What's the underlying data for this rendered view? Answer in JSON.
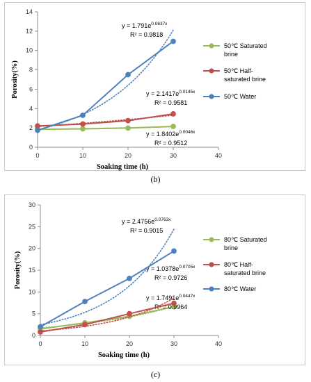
{
  "chart_data": [
    {
      "type": "line",
      "caption": "(b)",
      "xlabel": "Soaking time (h)",
      "ylabel": "Porosity(%)",
      "xlim": [
        0,
        40
      ],
      "ylim": [
        0,
        14
      ],
      "xticks": [
        0,
        10,
        20,
        30,
        40
      ],
      "yticks": [
        0,
        2,
        4,
        6,
        8,
        10,
        12,
        14
      ],
      "x": [
        0,
        10,
        20,
        30
      ],
      "legend_position": "right",
      "series": [
        {
          "name": "50℃ Saturated brine",
          "legend_lines": [
            "50℃ Saturated",
            "brine"
          ],
          "color": "#9BBB59",
          "values": [
            1.85,
            1.9,
            1.98,
            2.15
          ],
          "fit": {
            "a": 1.8402,
            "b": 0.0046
          },
          "eq_base": "y = 1.8402e",
          "eq_exp": "0.0046x",
          "r2": "R² = 0.9512"
        },
        {
          "name": "50℃ Half-saturated brine",
          "legend_lines": [
            "50℃ Half-",
            "saturated brine"
          ],
          "color": "#C0504D",
          "values": [
            2.2,
            2.4,
            2.75,
            3.45
          ],
          "fit": {
            "a": 2.1417,
            "b": 0.0145
          },
          "eq_base": "y = 2.1417e",
          "eq_exp": "0.0145x",
          "r2": "R² = 0.9581"
        },
        {
          "name": "50℃ Water",
          "legend_lines": [
            "50℃ Water"
          ],
          "color": "#4F81BD",
          "values": [
            1.75,
            3.3,
            7.5,
            10.95
          ],
          "fit": {
            "a": 1.791,
            "b": 0.0637
          },
          "eq_base": "y = 1.791e",
          "eq_exp": "0.0637x",
          "r2": "R² = 0.9818"
        }
      ]
    },
    {
      "type": "line",
      "caption": "(c)",
      "xlabel": "Soaking time (h)",
      "ylabel": "Porosity(%)",
      "xlim": [
        0,
        40
      ],
      "ylim": [
        0,
        30
      ],
      "xticks": [
        0,
        10,
        20,
        30,
        40
      ],
      "yticks": [
        0,
        5,
        10,
        15,
        20,
        25,
        30
      ],
      "x": [
        0,
        10,
        20,
        30
      ],
      "legend_position": "right",
      "series": [
        {
          "name": "80℃ Saturated brine",
          "legend_lines": [
            "80℃ Saturated",
            "brine"
          ],
          "color": "#9BBB59",
          "values": [
            1.5,
            2.9,
            4.4,
            6.6
          ],
          "fit": {
            "a": 1.7491,
            "b": 0.0447
          },
          "eq_base": "y = 1.7491e",
          "eq_exp": "0.0447x",
          "r2": "R² = 0.9964"
        },
        {
          "name": "80℃ Half-saturated brine",
          "legend_lines": [
            "80℃ Half-",
            "saturated brine"
          ],
          "color": "#C0504D",
          "values": [
            0.8,
            2.5,
            5.0,
            7.4
          ],
          "fit": {
            "a": 1.0378,
            "b": 0.0705
          },
          "eq_base": "y = 1.0378e",
          "eq_exp": "0.0705x",
          "r2": "R² = 0.9726"
        },
        {
          "name": "80℃ Water",
          "legend_lines": [
            "80℃ Water"
          ],
          "color": "#4F81BD",
          "values": [
            2.0,
            7.8,
            13.1,
            19.4
          ],
          "fit": {
            "a": 2.4756,
            "b": 0.0763
          },
          "eq_base": "y = 2.4756e",
          "eq_exp": "0.0763x",
          "r2": "R² = 0.9015"
        }
      ]
    }
  ]
}
